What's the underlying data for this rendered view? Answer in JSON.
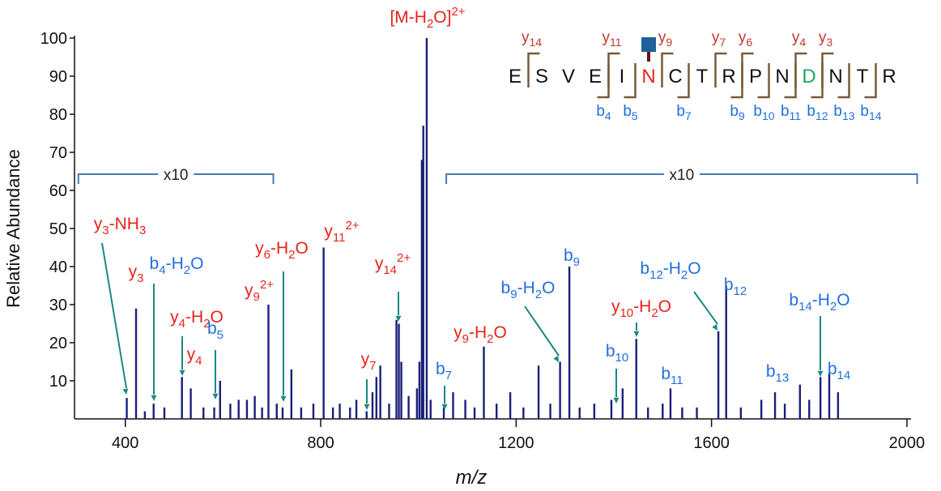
{
  "chart_data": {
    "type": "stem",
    "x_label": "m/z",
    "y_label": "Relative Abundance",
    "xlim": [
      296,
      2025
    ],
    "ylim": [
      0,
      100
    ],
    "xticks": [
      400,
      800,
      1200,
      1600,
      2000
    ],
    "yticks": [
      10,
      20,
      30,
      40,
      50,
      60,
      70,
      80,
      90,
      100
    ],
    "color": "#1b1f7a",
    "x": [
      403,
      422,
      440,
      458,
      480,
      516,
      534,
      560,
      582,
      594,
      615,
      632,
      649,
      665,
      680,
      693,
      710,
      722,
      740,
      760,
      785,
      806,
      825,
      839,
      860,
      873,
      894,
      906,
      914,
      922,
      940,
      955,
      960,
      965,
      980,
      997,
      1002,
      1007,
      1010,
      1017,
      1025,
      1052,
      1071,
      1096,
      1115,
      1134,
      1160,
      1188,
      1215,
      1246,
      1270,
      1290,
      1309,
      1330,
      1360,
      1395,
      1418,
      1446,
      1470,
      1500,
      1516,
      1540,
      1570,
      1614,
      1630,
      1660,
      1702,
      1730,
      1750,
      1781,
      1800,
      1823,
      1841,
      1859
    ],
    "values": [
      5.5,
      29,
      2,
      4,
      3,
      11,
      8,
      3,
      3,
      10,
      4,
      5,
      5,
      6,
      3,
      30,
      4,
      3,
      13,
      3,
      4,
      45,
      3,
      4,
      3,
      5,
      2,
      7,
      11,
      14,
      4,
      26,
      25,
      15,
      6,
      8,
      15,
      68,
      77,
      100,
      5,
      3,
      7,
      5,
      3,
      19,
      4,
      7,
      3,
      14,
      4,
      15,
      40,
      3,
      4,
      5,
      8,
      21,
      3,
      4,
      8,
      3,
      3,
      23,
      35,
      3,
      5,
      7,
      4,
      9,
      5,
      11,
      12,
      7
    ],
    "zoom_regions": [
      {
        "label": "x10",
        "range": [
          304,
          703
        ]
      },
      {
        "label": "x10",
        "range": [
          1057,
          2021
        ]
      }
    ],
    "annotations": [
      {
        "color": "#e8231b",
        "text": [
          {
            "t": "y"
          },
          {
            "t": "3",
            "s": "sub"
          },
          {
            "t": "-NH"
          },
          {
            "t": "3",
            "s": "sub"
          }
        ]
      },
      {
        "color": "#e8231b",
        "text": [
          {
            "t": "y"
          },
          {
            "t": "3",
            "s": "sub"
          }
        ]
      },
      {
        "color": "#1f6fe0",
        "text": [
          {
            "t": "b"
          },
          {
            "t": "4",
            "s": "sub"
          },
          {
            "t": "-H"
          },
          {
            "t": "2",
            "s": "sub"
          },
          {
            "t": "O"
          }
        ]
      },
      {
        "color": "#e8231b",
        "text": [
          {
            "t": "y"
          },
          {
            "t": "4",
            "s": "sub"
          },
          {
            "t": "-H"
          },
          {
            "t": "2",
            "s": "sub"
          },
          {
            "t": "O"
          }
        ]
      },
      {
        "color": "#e8231b",
        "text": [
          {
            "t": "y"
          },
          {
            "t": "4",
            "s": "sub"
          }
        ]
      },
      {
        "color": "#1f6fe0",
        "text": [
          {
            "t": "b"
          },
          {
            "t": "5",
            "s": "sub"
          }
        ]
      },
      {
        "color": "#e8231b",
        "text": [
          {
            "t": "y"
          },
          {
            "t": "6",
            "s": "sub"
          },
          {
            "t": "-H"
          },
          {
            "t": "2",
            "s": "sub"
          },
          {
            "t": "O"
          }
        ]
      },
      {
        "color": "#e8231b",
        "text": [
          {
            "t": "y"
          },
          {
            "t": "9",
            "s": "sub"
          },
          {
            "t": "2+",
            "s": "sup"
          }
        ]
      },
      {
        "color": "#e8231b",
        "text": [
          {
            "t": "y"
          },
          {
            "t": "11",
            "s": "sub"
          },
          {
            "t": "2+",
            "s": "sup"
          }
        ]
      },
      {
        "color": "#e8231b",
        "text": [
          {
            "t": "y"
          },
          {
            "t": "14",
            "s": "sub"
          },
          {
            "t": "2+",
            "s": "sup"
          }
        ]
      },
      {
        "color": "#e8231b",
        "text": [
          {
            "t": "y"
          },
          {
            "t": "7",
            "s": "sub"
          }
        ]
      },
      {
        "color": "#e8231b",
        "text": [
          {
            "t": "[M-H"
          },
          {
            "t": "2",
            "s": "sub"
          },
          {
            "t": "O]"
          },
          {
            "t": "2+",
            "s": "sup"
          }
        ]
      },
      {
        "color": "#1f6fe0",
        "text": [
          {
            "t": "b"
          },
          {
            "t": "7",
            "s": "sub"
          }
        ]
      },
      {
        "color": "#e8231b",
        "text": [
          {
            "t": "y"
          },
          {
            "t": "9",
            "s": "sub"
          },
          {
            "t": "-H"
          },
          {
            "t": "2",
            "s": "sub"
          },
          {
            "t": "O"
          }
        ]
      },
      {
        "color": "#1f6fe0",
        "text": [
          {
            "t": "b"
          },
          {
            "t": "9",
            "s": "sub"
          },
          {
            "t": "-H"
          },
          {
            "t": "2",
            "s": "sub"
          },
          {
            "t": "O"
          }
        ]
      },
      {
        "color": "#1f6fe0",
        "text": [
          {
            "t": "b"
          },
          {
            "t": "9",
            "s": "sub"
          }
        ]
      },
      {
        "color": "#e8231b",
        "text": [
          {
            "t": "y"
          },
          {
            "t": "10",
            "s": "sub"
          },
          {
            "t": "-H"
          },
          {
            "t": "2",
            "s": "sub"
          },
          {
            "t": "O"
          }
        ]
      },
      {
        "color": "#1f6fe0",
        "text": [
          {
            "t": "b"
          },
          {
            "t": "10",
            "s": "sub"
          }
        ]
      },
      {
        "color": "#1f6fe0",
        "text": [
          {
            "t": "b"
          },
          {
            "t": "11",
            "s": "sub"
          }
        ]
      },
      {
        "color": "#1f6fe0",
        "text": [
          {
            "t": "b"
          },
          {
            "t": "12",
            "s": "sub"
          },
          {
            "t": "-H"
          },
          {
            "t": "2",
            "s": "sub"
          },
          {
            "t": "O"
          }
        ]
      },
      {
        "color": "#1f6fe0",
        "text": [
          {
            "t": "b"
          },
          {
            "t": "12",
            "s": "sub"
          }
        ]
      },
      {
        "color": "#1f6fe0",
        "text": [
          {
            "t": "b"
          },
          {
            "t": "13",
            "s": "sub"
          }
        ]
      },
      {
        "color": "#1f6fe0",
        "text": [
          {
            "t": "b"
          },
          {
            "t": "14",
            "s": "sub"
          },
          {
            "t": "-H"
          },
          {
            "t": "2",
            "s": "sub"
          },
          {
            "t": "O"
          }
        ]
      },
      {
        "color": "#1f6fe0",
        "text": [
          {
            "t": "b"
          },
          {
            "t": "14",
            "s": "sub"
          }
        ]
      }
    ],
    "sequence": {
      "residues": [
        {
          "t": "E",
          "color": "#111111"
        },
        {
          "t": "S",
          "color": "#111111"
        },
        {
          "t": "V",
          "color": "#111111"
        },
        {
          "t": "E",
          "color": "#111111"
        },
        {
          "t": "I",
          "color": "#111111"
        },
        {
          "t": "N",
          "color": "#e8231b"
        },
        {
          "t": "C",
          "color": "#111111"
        },
        {
          "t": "T",
          "color": "#111111"
        },
        {
          "t": "R",
          "color": "#111111"
        },
        {
          "t": "P",
          "color": "#111111"
        },
        {
          "t": "N",
          "color": "#111111"
        },
        {
          "t": "D",
          "color": "#22a85a"
        },
        {
          "t": "N",
          "color": "#111111"
        },
        {
          "t": "T",
          "color": "#111111"
        },
        {
          "t": "R",
          "color": "#111111"
        }
      ],
      "y_ions": [
        14,
        11,
        9,
        7,
        6,
        4,
        3
      ],
      "b_ions": [
        4,
        5,
        7,
        9,
        10,
        11,
        12,
        13,
        14
      ],
      "y_ion_letter": "y",
      "b_ion_letter": "b",
      "y_color": "#c0392b",
      "b_color": "#1f6fe0",
      "bracket_color": "#7a5a3a"
    }
  }
}
